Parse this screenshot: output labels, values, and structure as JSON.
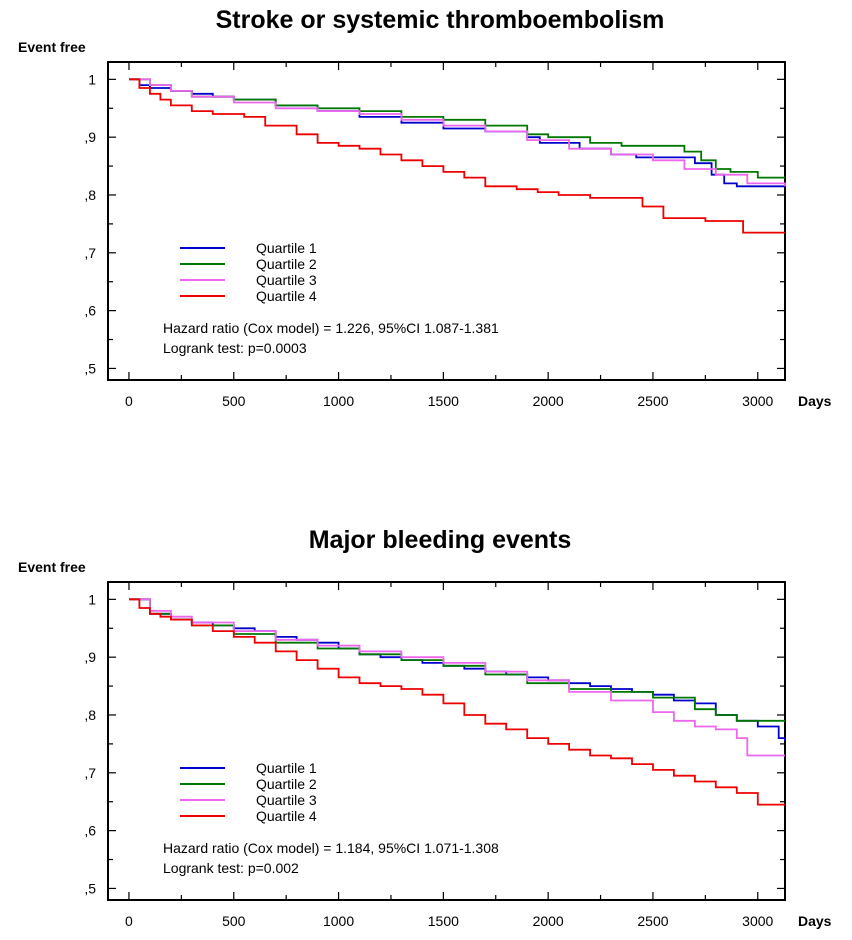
{
  "chart_data": [
    {
      "type": "line",
      "title": "Stroke or systemic thromboembolism",
      "ylabel": "Event free",
      "xlabel": "Days",
      "xlim": [
        -100,
        3130
      ],
      "ylim": [
        0.48,
        1.03
      ],
      "xticks": [
        0,
        500,
        1000,
        1500,
        2000,
        2500,
        3000
      ],
      "xtick_labels": [
        "0",
        "500",
        "1000",
        "1500",
        "2000",
        "2500",
        "3000"
      ],
      "yticks": [
        0.5,
        0.6,
        0.7,
        0.8,
        0.9,
        1.0
      ],
      "ytick_labels": [
        ",5",
        ",6",
        ",7",
        ",8",
        ",9",
        "1"
      ],
      "legend_position": "lower-left",
      "series": [
        {
          "name": "Quartile 1",
          "color": "#0000cc",
          "x": [
            0,
            50,
            100,
            200,
            300,
            400,
            500,
            700,
            900,
            1100,
            1300,
            1500,
            1700,
            1900,
            1960,
            2150,
            2300,
            2420,
            2700,
            2780,
            2840,
            2900,
            3130
          ],
          "y": [
            1.0,
            0.99,
            0.985,
            0.98,
            0.975,
            0.97,
            0.965,
            0.955,
            0.945,
            0.935,
            0.925,
            0.915,
            0.91,
            0.9,
            0.89,
            0.88,
            0.87,
            0.865,
            0.855,
            0.835,
            0.82,
            0.815,
            0.815
          ]
        },
        {
          "name": "Quartile 2",
          "color": "#007700",
          "x": [
            0,
            100,
            200,
            300,
            500,
            700,
            900,
            1100,
            1300,
            1500,
            1700,
            1900,
            2000,
            2200,
            2350,
            2650,
            2730,
            2800,
            2870,
            3000,
            3130
          ],
          "y": [
            1.0,
            0.99,
            0.98,
            0.97,
            0.965,
            0.955,
            0.95,
            0.945,
            0.935,
            0.93,
            0.92,
            0.905,
            0.9,
            0.89,
            0.885,
            0.875,
            0.86,
            0.845,
            0.84,
            0.83,
            0.83
          ]
        },
        {
          "name": "Quartile 3",
          "color": "#ee66ee",
          "x": [
            0,
            100,
            200,
            300,
            500,
            700,
            900,
            1100,
            1300,
            1500,
            1700,
            1900,
            2100,
            2300,
            2500,
            2650,
            2800,
            2950,
            3130
          ],
          "y": [
            1.0,
            0.99,
            0.98,
            0.97,
            0.96,
            0.95,
            0.945,
            0.94,
            0.93,
            0.92,
            0.91,
            0.895,
            0.88,
            0.87,
            0.86,
            0.845,
            0.835,
            0.82,
            0.815
          ]
        },
        {
          "name": "Quartile 4",
          "color": "#ee0000",
          "x": [
            0,
            50,
            100,
            150,
            200,
            300,
            400,
            550,
            650,
            800,
            900,
            1000,
            1100,
            1200,
            1300,
            1400,
            1500,
            1600,
            1700,
            1850,
            1950,
            2050,
            2200,
            2450,
            2550,
            2750,
            2930,
            3130
          ],
          "y": [
            1.0,
            0.985,
            0.975,
            0.965,
            0.955,
            0.945,
            0.94,
            0.935,
            0.92,
            0.905,
            0.89,
            0.885,
            0.88,
            0.87,
            0.86,
            0.85,
            0.84,
            0.83,
            0.815,
            0.81,
            0.805,
            0.8,
            0.795,
            0.78,
            0.76,
            0.755,
            0.735,
            0.735
          ]
        }
      ],
      "annotations": [
        "Hazard ratio (Cox model) = 1.226, 95%CI 1.087-1.381",
        "Logrank test: p=0.0003"
      ]
    },
    {
      "type": "line",
      "title": "Major bleeding events",
      "ylabel": "Event free",
      "xlabel": "Days",
      "xlim": [
        -100,
        3130
      ],
      "ylim": [
        0.48,
        1.03
      ],
      "xticks": [
        0,
        500,
        1000,
        1500,
        2000,
        2500,
        3000
      ],
      "xtick_labels": [
        "0",
        "500",
        "1000",
        "1500",
        "2000",
        "2500",
        "3000"
      ],
      "yticks": [
        0.5,
        0.6,
        0.7,
        0.8,
        0.9,
        1.0
      ],
      "ytick_labels": [
        ",5",
        ",6",
        ",7",
        ",8",
        ",9",
        "1"
      ],
      "legend_position": "lower-left",
      "series": [
        {
          "name": "Quartile 1",
          "color": "#0000cc",
          "x": [
            0,
            100,
            200,
            300,
            400,
            500,
            600,
            700,
            800,
            900,
            1000,
            1100,
            1200,
            1300,
            1400,
            1500,
            1600,
            1700,
            1800,
            1900,
            2000,
            2100,
            2200,
            2300,
            2400,
            2500,
            2600,
            2700,
            2800,
            2900,
            3000,
            3100,
            3130
          ],
          "y": [
            1.0,
            0.975,
            0.965,
            0.96,
            0.955,
            0.95,
            0.945,
            0.935,
            0.93,
            0.925,
            0.915,
            0.905,
            0.9,
            0.895,
            0.89,
            0.885,
            0.88,
            0.875,
            0.87,
            0.865,
            0.86,
            0.855,
            0.85,
            0.845,
            0.84,
            0.835,
            0.825,
            0.82,
            0.8,
            0.79,
            0.78,
            0.76,
            0.755
          ]
        },
        {
          "name": "Quartile 2",
          "color": "#007700",
          "x": [
            0,
            100,
            200,
            300,
            500,
            700,
            900,
            1100,
            1300,
            1500,
            1700,
            1900,
            2100,
            2300,
            2500,
            2700,
            2800,
            2900,
            3130
          ],
          "y": [
            1.0,
            0.975,
            0.965,
            0.955,
            0.94,
            0.925,
            0.915,
            0.905,
            0.895,
            0.885,
            0.87,
            0.855,
            0.845,
            0.84,
            0.83,
            0.81,
            0.8,
            0.79,
            0.79
          ]
        },
        {
          "name": "Quartile 3",
          "color": "#ee66ee",
          "x": [
            0,
            100,
            200,
            300,
            500,
            700,
            900,
            1100,
            1300,
            1500,
            1700,
            1900,
            2100,
            2300,
            2500,
            2600,
            2700,
            2800,
            2900,
            2950,
            3130
          ],
          "y": [
            1.0,
            0.98,
            0.97,
            0.96,
            0.945,
            0.93,
            0.92,
            0.91,
            0.9,
            0.89,
            0.875,
            0.86,
            0.84,
            0.825,
            0.805,
            0.79,
            0.78,
            0.775,
            0.76,
            0.73,
            0.73
          ]
        },
        {
          "name": "Quartile 4",
          "color": "#ee0000",
          "x": [
            0,
            50,
            100,
            150,
            200,
            300,
            400,
            500,
            600,
            700,
            800,
            900,
            1000,
            1100,
            1200,
            1300,
            1400,
            1500,
            1600,
            1700,
            1800,
            1900,
            2000,
            2100,
            2200,
            2300,
            2400,
            2500,
            2600,
            2700,
            2800,
            2900,
            3000,
            3130
          ],
          "y": [
            1.0,
            0.985,
            0.975,
            0.97,
            0.965,
            0.955,
            0.945,
            0.935,
            0.925,
            0.91,
            0.895,
            0.88,
            0.865,
            0.855,
            0.85,
            0.845,
            0.835,
            0.82,
            0.8,
            0.785,
            0.775,
            0.76,
            0.75,
            0.74,
            0.73,
            0.725,
            0.715,
            0.705,
            0.695,
            0.685,
            0.675,
            0.665,
            0.645,
            0.645
          ]
        }
      ],
      "annotations": [
        "Hazard ratio (Cox model) = 1.184, 95%CI 1.071-1.308",
        "Logrank test: p=0.002"
      ]
    }
  ]
}
